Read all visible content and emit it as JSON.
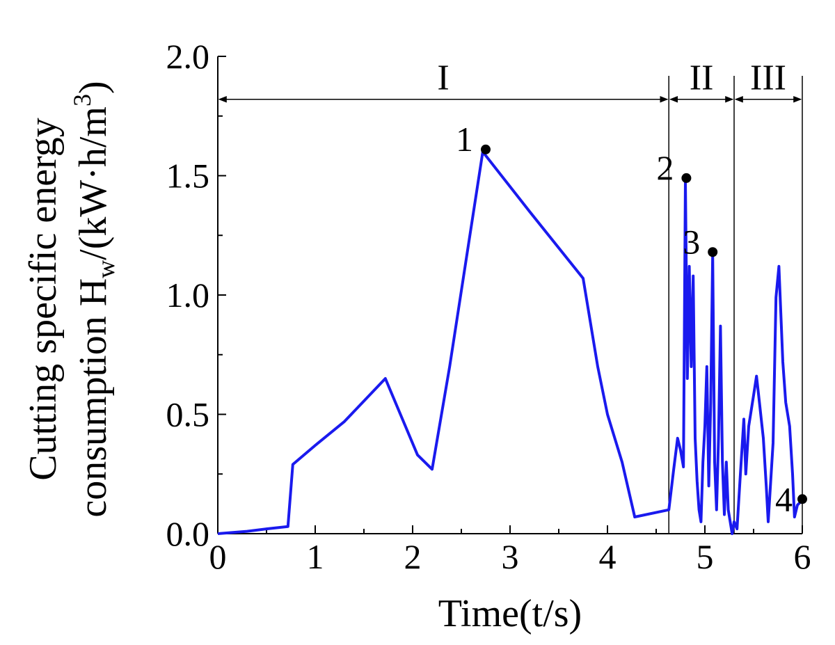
{
  "chart_data": {
    "type": "line",
    "xlabel": "Time(t/s)",
    "ylabel": {
      "line1": "Cutting specific energy",
      "line2_prefix": "consumption H",
      "line2_sub": "w",
      "line2_mid": "/(kW·h/m",
      "line2_sup": "3",
      "line2_end": ")"
    },
    "xlim": [
      0,
      6
    ],
    "ylim": [
      0,
      2.0
    ],
    "x_ticks": [
      0,
      1,
      2,
      3,
      4,
      5,
      6
    ],
    "x_tick_labels": [
      "0",
      "1",
      "2",
      "3",
      "4",
      "5",
      "6"
    ],
    "y_ticks": [
      0.0,
      0.5,
      1.0,
      1.5,
      2.0
    ],
    "y_tick_labels": [
      "0.0",
      "0.5",
      "1.0",
      "1.5",
      "2.0"
    ],
    "grid": false,
    "series": [
      {
        "color": "#1a1aee",
        "points": [
          [
            0.0,
            0.0
          ],
          [
            0.3,
            0.01
          ],
          [
            0.5,
            0.02
          ],
          [
            0.72,
            0.03
          ],
          [
            0.77,
            0.29
          ],
          [
            1.0,
            0.37
          ],
          [
            1.3,
            0.47
          ],
          [
            1.72,
            0.65
          ],
          [
            2.05,
            0.33
          ],
          [
            2.2,
            0.27
          ],
          [
            2.38,
            0.7
          ],
          [
            2.55,
            1.15
          ],
          [
            2.72,
            1.6
          ],
          [
            3.2,
            1.35
          ],
          [
            3.75,
            1.07
          ],
          [
            3.9,
            0.7
          ],
          [
            4.0,
            0.5
          ],
          [
            4.15,
            0.3
          ],
          [
            4.28,
            0.07
          ],
          [
            4.63,
            0.1
          ],
          [
            4.68,
            0.27
          ],
          [
            4.72,
            0.4
          ],
          [
            4.75,
            0.35
          ],
          [
            4.78,
            0.28
          ],
          [
            4.8,
            1.48
          ],
          [
            4.82,
            0.65
          ],
          [
            4.84,
            1.12
          ],
          [
            4.86,
            0.7
          ],
          [
            4.88,
            1.08
          ],
          [
            4.9,
            0.4
          ],
          [
            4.92,
            0.22
          ],
          [
            4.94,
            0.1
          ],
          [
            4.96,
            0.05
          ],
          [
            4.98,
            0.3
          ],
          [
            5.0,
            0.45
          ],
          [
            5.02,
            0.7
          ],
          [
            5.04,
            0.2
          ],
          [
            5.06,
            0.55
          ],
          [
            5.08,
            1.17
          ],
          [
            5.1,
            0.3
          ],
          [
            5.12,
            0.1
          ],
          [
            5.14,
            0.4
          ],
          [
            5.16,
            0.87
          ],
          [
            5.18,
            0.3
          ],
          [
            5.2,
            0.08
          ],
          [
            5.22,
            0.3
          ],
          [
            5.24,
            0.1
          ],
          [
            5.26,
            0.05
          ],
          [
            5.28,
            0.0
          ],
          [
            5.3,
            0.05
          ],
          [
            5.33,
            0.02
          ],
          [
            5.36,
            0.22
          ],
          [
            5.38,
            0.35
          ],
          [
            5.4,
            0.48
          ],
          [
            5.42,
            0.25
          ],
          [
            5.45,
            0.45
          ],
          [
            5.5,
            0.58
          ],
          [
            5.53,
            0.66
          ],
          [
            5.56,
            0.55
          ],
          [
            5.6,
            0.4
          ],
          [
            5.63,
            0.2
          ],
          [
            5.65,
            0.05
          ],
          [
            5.7,
            0.38
          ],
          [
            5.73,
            0.99
          ],
          [
            5.76,
            1.12
          ],
          [
            5.8,
            0.72
          ],
          [
            5.83,
            0.55
          ],
          [
            5.87,
            0.45
          ],
          [
            5.9,
            0.25
          ],
          [
            5.92,
            0.07
          ],
          [
            5.95,
            0.12
          ],
          [
            6.0,
            0.14
          ]
        ]
      }
    ],
    "regions": [
      {
        "label": "I",
        "x_start": 0.0,
        "x_end": 4.63
      },
      {
        "label": "II",
        "x_start": 4.63,
        "x_end": 5.3
      },
      {
        "label": "III",
        "x_start": 5.3,
        "x_end": 6.0
      }
    ],
    "region_arrow_y": 1.82,
    "annotated_points": [
      {
        "label": "1",
        "x": 2.75,
        "y": 1.61
      },
      {
        "label": "2",
        "x": 4.81,
        "y": 1.49
      },
      {
        "label": "3",
        "x": 5.08,
        "y": 1.18
      },
      {
        "label": "4",
        "x": 6.0,
        "y": 0.145
      }
    ]
  }
}
